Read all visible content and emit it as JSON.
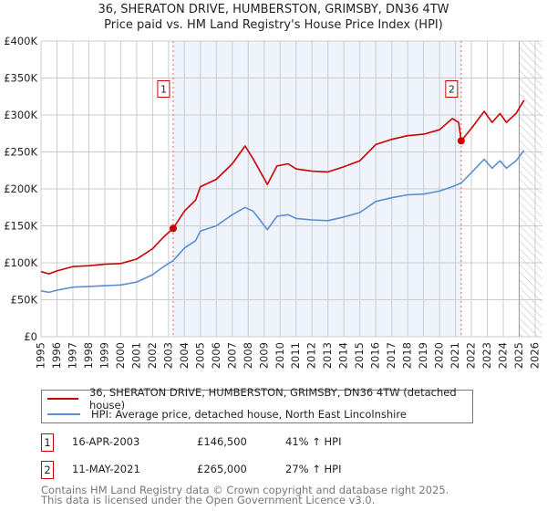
{
  "title": "36, SHERATON DRIVE, HUMBERSTON, GRIMSBY, DN36 4TW",
  "subtitle": "Price paid vs. HM Land Registry's House Price Index (HPI)",
  "chart_data": {
    "type": "line",
    "xlim": [
      1995,
      2026
    ],
    "ylim": [
      0,
      400000
    ],
    "ytick_labels": [
      "£0",
      "£50K",
      "£100K",
      "£150K",
      "£200K",
      "£250K",
      "£300K",
      "£350K",
      "£400K"
    ],
    "ytick_values": [
      0,
      50000,
      100000,
      150000,
      200000,
      250000,
      300000,
      350000,
      400000
    ],
    "xtick_labels": [
      "1995",
      "1996",
      "1997",
      "1998",
      "1999",
      "2000",
      "2001",
      "2002",
      "2003",
      "2004",
      "2005",
      "2006",
      "2007",
      "2008",
      "2009",
      "2010",
      "2011",
      "2012",
      "2013",
      "2014",
      "2015",
      "2016",
      "2017",
      "2018",
      "2019",
      "2020",
      "2021",
      "2022",
      "2023",
      "2024",
      "2025",
      "2026"
    ],
    "grid": true,
    "shaded_period": [
      2003.29,
      2021.36
    ],
    "forecast_hatch_from": 2025.0,
    "series": [
      {
        "name": "36, SHERATON DRIVE, HUMBERSTON, GRIMSBY, DN36 4TW (detached house)",
        "color": "#cc0000",
        "x": [
          1995,
          1995.5,
          1996,
          1997,
          1998,
          1999,
          2000,
          2001,
          2002,
          2002.7,
          2003.29,
          2004,
          2004.7,
          2005,
          2006,
          2007,
          2007.8,
          2008.3,
          2009.2,
          2009.8,
          2010.5,
          2011,
          2012,
          2013,
          2014,
          2015,
          2016,
          2017,
          2018,
          2019,
          2020,
          2020.8,
          2021.2,
          2021.36,
          2022,
          2022.8,
          2023.3,
          2023.8,
          2024.2,
          2024.8,
          2025.3
        ],
        "y": [
          88000,
          85000,
          89000,
          95000,
          96000,
          98000,
          99000,
          105000,
          119000,
          135000,
          146500,
          170000,
          185000,
          203000,
          213000,
          234000,
          258000,
          241000,
          206000,
          231000,
          234000,
          227000,
          224000,
          223000,
          230000,
          238000,
          260000,
          267000,
          272000,
          274000,
          280000,
          295000,
          290000,
          265000,
          282000,
          305000,
          290000,
          302000,
          290000,
          302000,
          320000
        ]
      },
      {
        "name": "HPI: Average price, detached house, North East Lincolnshire",
        "color": "#5b8ed0",
        "x": [
          1995,
          1995.5,
          1996,
          1997,
          1998,
          1999,
          2000,
          2001,
          2002,
          2002.7,
          2003.29,
          2004,
          2004.7,
          2005,
          2006,
          2007,
          2007.8,
          2008.3,
          2009.2,
          2009.8,
          2010.5,
          2011,
          2012,
          2013,
          2014,
          2015,
          2016,
          2017,
          2018,
          2019,
          2020,
          2020.8,
          2021.36,
          2022,
          2022.8,
          2023.3,
          2023.8,
          2024.2,
          2024.8,
          2025.3
        ],
        "y": [
          62000,
          60000,
          63000,
          67000,
          68000,
          69000,
          70000,
          74000,
          84000,
          95000,
          103000,
          120000,
          130000,
          143000,
          150000,
          165000,
          175000,
          170000,
          145000,
          163000,
          165000,
          160000,
          158000,
          157000,
          162000,
          168000,
          183000,
          188000,
          192000,
          193000,
          197000,
          203000,
          208000,
          222000,
          240000,
          228000,
          238000,
          228000,
          238000,
          252000
        ]
      }
    ],
    "sales": [
      {
        "label": "1",
        "x": 2003.29,
        "y": 146500
      },
      {
        "label": "2",
        "x": 2021.36,
        "y": 265000
      }
    ]
  },
  "legend": {
    "property": "36, SHERATON DRIVE, HUMBERSTON, GRIMSBY, DN36 4TW (detached house)",
    "hpi": "HPI: Average price, detached house, North East Lincolnshire"
  },
  "transactions": [
    {
      "num": "1",
      "date": "16-APR-2003",
      "price": "£146,500",
      "hpi": "41% ↑ HPI"
    },
    {
      "num": "2",
      "date": "11-MAY-2021",
      "price": "£265,000",
      "hpi": "27% ↑ HPI"
    }
  ],
  "footer": {
    "line1": "Contains HM Land Registry data © Crown copyright and database right 2025.",
    "line2": "This data is licensed under the Open Government Licence v3.0."
  }
}
